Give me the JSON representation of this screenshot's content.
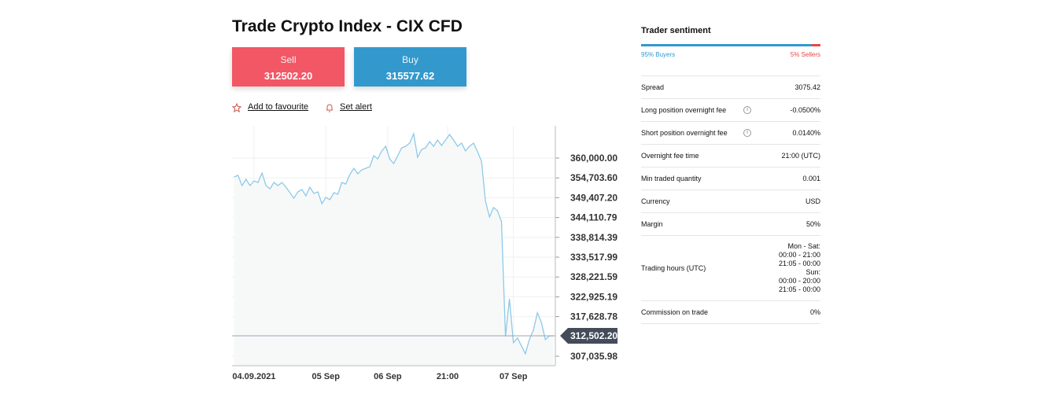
{
  "header": {
    "title": "Trade Crypto Index - CIX CFD"
  },
  "sell": {
    "label": "Sell",
    "price": "312502.20"
  },
  "buy": {
    "label": "Buy",
    "price": "315577.62"
  },
  "actions": [
    "Add to favourite",
    "Set alert"
  ],
  "chart_data": {
    "type": "line",
    "color": "#8ec9e8",
    "values": [
      354960,
      355380,
      352650,
      354330,
      352650,
      353910,
      353490,
      356010,
      352650,
      351810,
      353490,
      352650,
      353490,
      352230,
      350760,
      349290,
      350970,
      351600,
      349920,
      352230,
      350550,
      350970,
      347820,
      349500,
      348870,
      350760,
      350340,
      353490,
      353070,
      355590,
      357270,
      355800,
      356850,
      357270,
      357690,
      360630,
      359790,
      361890,
      363150,
      359790,
      358530,
      360630,
      362730,
      363150,
      363990,
      366510,
      360210,
      362310,
      362730,
      364410,
      363150,
      364830,
      363360,
      364830,
      366300,
      364830,
      363150,
      363990,
      361890,
      363150,
      363990,
      361680,
      359160,
      348450,
      344250,
      346770,
      345930,
      342990,
      312330,
      322410,
      310650,
      311910,
      309810,
      307710,
      311490,
      314010,
      318630,
      316110,
      311490,
      312502.2,
      312502.2
    ],
    "xlim": [
      0,
      81
    ],
    "xticks": [
      {
        "value": 5.5,
        "label": "04.09.2021"
      },
      {
        "value": 23.5,
        "label": "05 Sep"
      },
      {
        "value": 39,
        "label": "06 Sep"
      },
      {
        "value": 54,
        "label": "21:00"
      },
      {
        "value": 70.5,
        "label": "07 Sep"
      }
    ],
    "ylim": [
      304514,
      368617
    ],
    "yticks": [
      {
        "value": 360000,
        "label": "360,000.00"
      },
      {
        "value": 354703.6,
        "label": "354,703.60"
      },
      {
        "value": 349407.2,
        "label": "349,407.20"
      },
      {
        "value": 344110.79,
        "label": "344,110.79"
      },
      {
        "value": 338814.39,
        "label": "338,814.39"
      },
      {
        "value": 333517.99,
        "label": "333,517.99"
      },
      {
        "value": 328221.59,
        "label": "328,221.59"
      },
      {
        "value": 322925.19,
        "label": "322,925.19"
      },
      {
        "value": 317628.78,
        "label": "317,628.78"
      },
      {
        "value": 307035.98,
        "label": "307,035.98"
      }
    ],
    "current": {
      "value": 312502.2,
      "label": "312,502.20"
    },
    "grid": true
  },
  "sentiment": {
    "title": "Trader sentiment",
    "buyers": {
      "value": 95,
      "label": "95% Buyers"
    },
    "sellers": {
      "value": 5,
      "label": "5% Sellers"
    }
  },
  "details": [
    {
      "label": "Spread",
      "value": [
        "3075.42"
      ]
    },
    {
      "label": "Long position overnight fee",
      "value": [
        "-0.0500%"
      ],
      "info": true
    },
    {
      "label": "Short position overnight fee",
      "value": [
        "0.0140%"
      ],
      "info": true
    },
    {
      "label": "Overnight fee time",
      "value": [
        "21:00 (UTC)"
      ]
    },
    {
      "label": "Min traded quantity",
      "value": [
        "0.001"
      ]
    },
    {
      "label": "Currency",
      "value": [
        "USD"
      ]
    },
    {
      "label": "Margin",
      "value": [
        "50%"
      ]
    },
    {
      "label": "Trading hours (UTC)",
      "value": [
        "Mon - Sat:",
        "00:00 - 21:00",
        "21:05 - 00:00",
        "Sun:",
        "00:00 - 20:00",
        "21:05 - 00:00"
      ]
    },
    {
      "label": "Commission on trade",
      "value": [
        "0%"
      ]
    }
  ]
}
